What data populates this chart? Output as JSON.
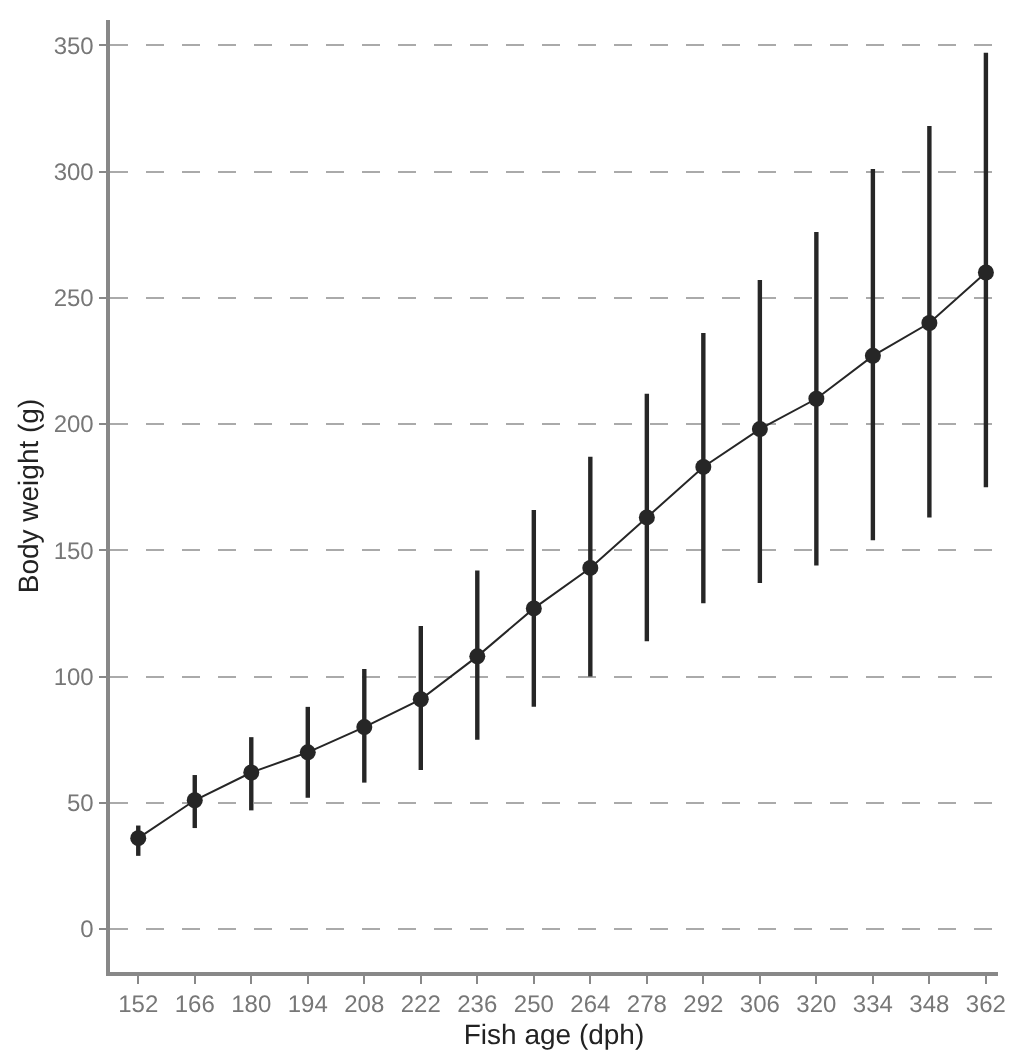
{
  "chart_data": {
    "type": "line",
    "xlabel": "Fish age (dph)",
    "ylabel": "Body weight (g)",
    "x": [
      152,
      166,
      180,
      194,
      208,
      222,
      236,
      250,
      264,
      278,
      292,
      306,
      320,
      334,
      348,
      362
    ],
    "series": [
      {
        "color": "#262626",
        "values": [
          36,
          51,
          62,
          70,
          80,
          91,
          108,
          127,
          143,
          163,
          183,
          198,
          210,
          227,
          240,
          260
        ],
        "errors": [
          [
            29,
            41
          ],
          [
            40,
            61
          ],
          [
            47,
            76
          ],
          [
            52,
            88
          ],
          [
            58,
            103
          ],
          [
            63,
            120
          ],
          [
            75,
            142
          ],
          [
            88,
            166
          ],
          [
            100,
            187
          ],
          [
            114,
            212
          ],
          [
            129,
            236
          ],
          [
            137,
            257
          ],
          [
            144,
            276
          ],
          [
            154,
            301
          ],
          [
            163,
            318
          ],
          [
            175,
            347
          ]
        ]
      }
    ],
    "xlim": [
      145,
      365
    ],
    "xticks": [
      152,
      166,
      180,
      194,
      208,
      222,
      236,
      250,
      264,
      278,
      292,
      306,
      320,
      334,
      348,
      362
    ],
    "ylim": [
      -17,
      360
    ],
    "yticks": [
      0,
      50,
      100,
      150,
      200,
      250,
      300,
      350
    ],
    "grid": "y",
    "marker": "circle",
    "line_style": "solid",
    "legend": false
  }
}
